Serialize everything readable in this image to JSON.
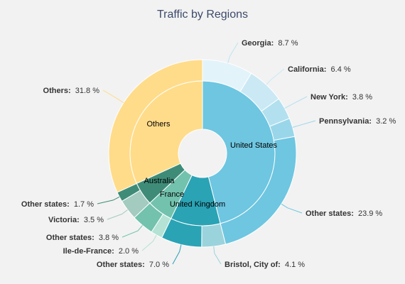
{
  "chart_data": {
    "type": "pie",
    "subtype": "sunburst",
    "title": "Traffic by Regions",
    "value_suffix": " %",
    "inner_ring": [
      {
        "name": "United States",
        "value": 46.0,
        "color": "#6ec6e1"
      },
      {
        "name": "United Kingdom",
        "value": 11.1,
        "color": "#2aa3b5"
      },
      {
        "name": "France",
        "value": 5.8,
        "color": "#72c2ad"
      },
      {
        "name": "Australia",
        "value": 5.2,
        "color": "#3e8c78"
      },
      {
        "name": "Others",
        "value": 31.8,
        "color": "#ffdc8a"
      }
    ],
    "outer_ring": [
      {
        "name": "Georgia",
        "parent": "United States",
        "value": 8.7,
        "color": "#e3f3fa"
      },
      {
        "name": "California",
        "parent": "United States",
        "value": 6.4,
        "color": "#cbe9f5"
      },
      {
        "name": "New York",
        "parent": "United States",
        "value": 3.8,
        "color": "#b3e0ef"
      },
      {
        "name": "Pennsylvania",
        "parent": "United States",
        "value": 3.2,
        "color": "#9ad6ea"
      },
      {
        "name": "Other states",
        "parent": "United States",
        "value": 23.9,
        "color": "#6ec6e1"
      },
      {
        "name": "Bristol, City of",
        "parent": "United Kingdom",
        "value": 4.1,
        "color": "#9bd3dc"
      },
      {
        "name": "Other states",
        "parent": "United Kingdom",
        "value": 7.0,
        "color": "#2aa3b5"
      },
      {
        "name": "Ile-de-France",
        "parent": "France",
        "value": 2.0,
        "color": "#b4e2d4"
      },
      {
        "name": "Other states",
        "parent": "France",
        "value": 3.8,
        "color": "#72c2ad"
      },
      {
        "name": "Victoria",
        "parent": "Australia",
        "value": 3.5,
        "color": "#a3cbbf"
      },
      {
        "name": "Other states",
        "parent": "Australia",
        "value": 1.7,
        "color": "#3e8c78"
      },
      {
        "name": "Others",
        "parent": "Others",
        "value": 31.8,
        "color": "#ffdc8a"
      }
    ],
    "outer_labels": [
      {
        "name": "Georgia",
        "value": "8.7"
      },
      {
        "name": "California",
        "value": "6.4"
      },
      {
        "name": "New York",
        "value": "3.8"
      },
      {
        "name": "Pennsylvania",
        "value": "3.2"
      },
      {
        "name": "Other states",
        "value": "23.9"
      },
      {
        "name": "Bristol, City of",
        "value": "4.1"
      },
      {
        "name": "Other states",
        "value": "7.0"
      },
      {
        "name": "Ile-de-France",
        "value": "2.0"
      },
      {
        "name": "Other states",
        "value": "3.8"
      },
      {
        "name": "Victoria",
        "value": "3.5"
      },
      {
        "name": "Other states",
        "value": "1.7"
      },
      {
        "name": "Others",
        "value": "31.8"
      }
    ],
    "legend": "none"
  }
}
